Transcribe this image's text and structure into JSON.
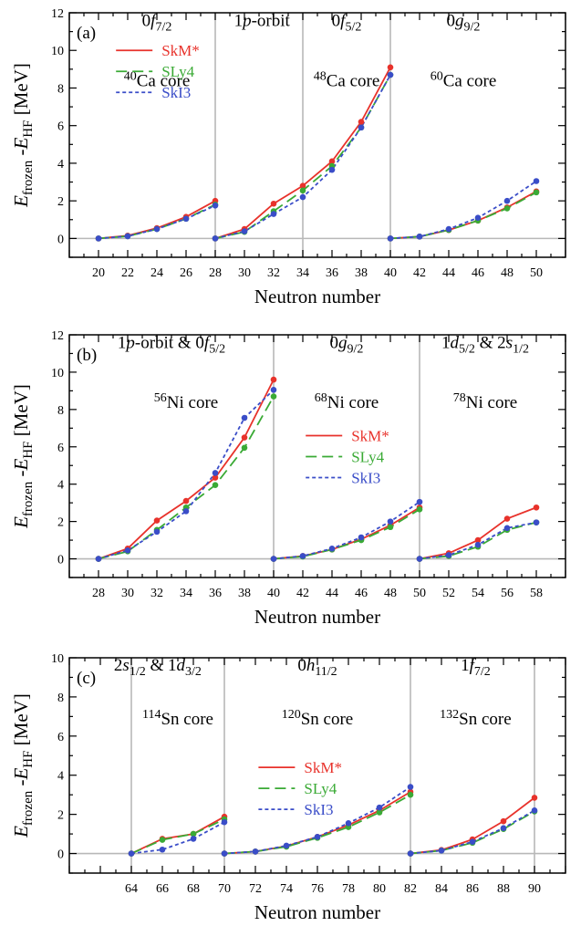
{
  "chart_data": [
    {
      "type": "line",
      "panel_label": "(a)",
      "xlabel": "Neutron number",
      "ylabel": "E_frozen - E_HF [MeV]",
      "xlim": [
        18,
        52
      ],
      "ylim": [
        -1,
        12
      ],
      "xticks": [
        20,
        22,
        24,
        26,
        28,
        30,
        32,
        34,
        36,
        38,
        40,
        42,
        44,
        46,
        48,
        50
      ],
      "yticks": [
        0,
        2,
        4,
        6,
        8,
        10,
        12
      ],
      "vlines": [
        28,
        34,
        40
      ],
      "legend": {
        "x": 21.2,
        "y": 10.0
      },
      "annotations": [
        {
          "x": 24,
          "y": 11.3,
          "parts": [
            {
              "t": "0"
            },
            {
              "t": "f",
              "i": true
            },
            {
              "t": "7/2",
              "sub": true
            }
          ]
        },
        {
          "x": 31.2,
          "y": 11.3,
          "parts": [
            {
              "t": "1"
            },
            {
              "t": "p",
              "i": true
            },
            {
              "t": "-orbit"
            }
          ]
        },
        {
          "x": 37,
          "y": 11.3,
          "parts": [
            {
              "t": "0"
            },
            {
              "t": "f",
              "i": true
            },
            {
              "t": "5/2",
              "sub": true
            }
          ]
        },
        {
          "x": 45,
          "y": 11.3,
          "parts": [
            {
              "t": "0"
            },
            {
              "t": "g",
              "i": true
            },
            {
              "t": "9/2",
              "sub": true
            }
          ]
        },
        {
          "x": 24,
          "y": 8.1,
          "parts": [
            {
              "t": "40",
              "sup": true
            },
            {
              "t": "Ca core"
            }
          ]
        },
        {
          "x": 37,
          "y": 8.1,
          "parts": [
            {
              "t": "48",
              "sup": true
            },
            {
              "t": "Ca core"
            }
          ]
        },
        {
          "x": 45,
          "y": 8.1,
          "parts": [
            {
              "t": "60",
              "sup": true
            },
            {
              "t": "Ca core"
            }
          ]
        }
      ],
      "series": [
        {
          "name": "SkM*",
          "color": "#e8322b",
          "dash": "none",
          "segments": [
            {
              "x": [
                20,
                22,
                24,
                26,
                28
              ],
              "y": [
                0,
                0.15,
                0.55,
                1.15,
                2.0
              ]
            },
            {
              "x": [
                28,
                30,
                32,
                34,
                36,
                38,
                40
              ],
              "y": [
                0,
                0.5,
                1.85,
                2.8,
                4.1,
                6.2,
                9.1
              ]
            },
            {
              "x": [
                40,
                42,
                44,
                46,
                48,
                50
              ],
              "y": [
                0,
                0.1,
                0.45,
                0.95,
                1.65,
                2.5
              ]
            }
          ]
        },
        {
          "name": "SLy4",
          "color": "#3aaa35",
          "dash": "12,6",
          "segments": [
            {
              "x": [
                20,
                22,
                24,
                26,
                28
              ],
              "y": [
                0,
                0.12,
                0.5,
                1.05,
                1.8
              ]
            },
            {
              "x": [
                28,
                30,
                32,
                34,
                36,
                38,
                40
              ],
              "y": [
                0,
                0.35,
                1.45,
                2.55,
                3.85,
                5.9,
                8.7
              ]
            },
            {
              "x": [
                40,
                42,
                44,
                46,
                48,
                50
              ],
              "y": [
                0,
                0.1,
                0.45,
                0.95,
                1.6,
                2.45
              ]
            }
          ]
        },
        {
          "name": "SkI3",
          "color": "#3a4dc8",
          "dash": "4,3",
          "segments": [
            {
              "x": [
                20,
                22,
                24,
                26,
                28
              ],
              "y": [
                0,
                0.12,
                0.5,
                1.05,
                1.75
              ]
            },
            {
              "x": [
                28,
                30,
                32,
                34,
                36,
                38,
                40
              ],
              "y": [
                0,
                0.38,
                1.3,
                2.2,
                3.65,
                5.9,
                8.7
              ]
            },
            {
              "x": [
                40,
                42,
                44,
                46,
                48,
                50
              ],
              "y": [
                0,
                0.1,
                0.5,
                1.1,
                2.0,
                3.05
              ]
            }
          ]
        }
      ]
    },
    {
      "type": "line",
      "panel_label": "(b)",
      "xlabel": "Neutron number",
      "ylabel": "E_frozen - E_HF [MeV]",
      "xlim": [
        26,
        60
      ],
      "ylim": [
        -1,
        12
      ],
      "xticks": [
        28,
        30,
        32,
        34,
        36,
        38,
        40,
        42,
        44,
        46,
        48,
        50,
        52,
        54,
        56,
        58
      ],
      "yticks": [
        0,
        2,
        4,
        6,
        8,
        10,
        12
      ],
      "vlines": [
        40,
        50
      ],
      "legend": {
        "x": 42.2,
        "y": 6.6
      },
      "annotations": [
        {
          "x": 33,
          "y": 11.3,
          "parts": [
            {
              "t": "1"
            },
            {
              "t": "p",
              "i": true
            },
            {
              "t": "-orbit & 0"
            },
            {
              "t": "f",
              "i": true
            },
            {
              "t": "5/2",
              "sub": true
            }
          ]
        },
        {
          "x": 45,
          "y": 11.3,
          "parts": [
            {
              "t": "0"
            },
            {
              "t": "g",
              "i": true
            },
            {
              "t": "9/2",
              "sub": true
            }
          ]
        },
        {
          "x": 54.5,
          "y": 11.3,
          "parts": [
            {
              "t": "1"
            },
            {
              "t": "d",
              "i": true
            },
            {
              "t": "5/2",
              "sub": true
            },
            {
              "t": " & 2"
            },
            {
              "t": "s",
              "i": true
            },
            {
              "t": "1/2",
              "sub": true
            }
          ]
        },
        {
          "x": 34,
          "y": 8.1,
          "parts": [
            {
              "t": "56",
              "sup": true
            },
            {
              "t": "Ni core"
            }
          ]
        },
        {
          "x": 45,
          "y": 8.1,
          "parts": [
            {
              "t": "68",
              "sup": true
            },
            {
              "t": "Ni core"
            }
          ]
        },
        {
          "x": 54.5,
          "y": 8.1,
          "parts": [
            {
              "t": "78",
              "sup": true
            },
            {
              "t": "Ni core"
            }
          ]
        }
      ],
      "series": [
        {
          "name": "SkM*",
          "color": "#e8322b",
          "dash": "none",
          "segments": [
            {
              "x": [
                28,
                30,
                32,
                34,
                36,
                38,
                40
              ],
              "y": [
                0,
                0.55,
                2.05,
                3.1,
                4.35,
                6.5,
                9.6
              ]
            },
            {
              "x": [
                40,
                42,
                44,
                46,
                48,
                50
              ],
              "y": [
                0,
                0.15,
                0.5,
                1.05,
                1.8,
                2.75
              ]
            },
            {
              "x": [
                50,
                52,
                54,
                56,
                58
              ],
              "y": [
                0,
                0.3,
                1.0,
                2.15,
                2.75
              ]
            }
          ]
        },
        {
          "name": "SLy4",
          "color": "#3aaa35",
          "dash": "12,6",
          "segments": [
            {
              "x": [
                28,
                30,
                32,
                34,
                36,
                38,
                40
              ],
              "y": [
                0,
                0.4,
                1.55,
                2.75,
                3.95,
                5.95,
                8.7
              ]
            },
            {
              "x": [
                40,
                42,
                44,
                46,
                48,
                50
              ],
              "y": [
                0,
                0.12,
                0.5,
                1.0,
                1.7,
                2.65
              ]
            },
            {
              "x": [
                50,
                52,
                54,
                56,
                58
              ],
              "y": [
                0,
                0.15,
                0.65,
                1.55,
                1.95
              ]
            }
          ]
        },
        {
          "name": "SkI3",
          "color": "#3a4dc8",
          "dash": "4,3",
          "segments": [
            {
              "x": [
                28,
                30,
                32,
                34,
                36,
                38,
                40
              ],
              "y": [
                0,
                0.45,
                1.45,
                2.55,
                4.6,
                7.55,
                9.05
              ]
            },
            {
              "x": [
                40,
                42,
                44,
                46,
                48,
                50
              ],
              "y": [
                0,
                0.15,
                0.55,
                1.15,
                2.0,
                3.05
              ]
            },
            {
              "x": [
                50,
                52,
                54,
                56,
                58
              ],
              "y": [
                0,
                0.2,
                0.75,
                1.65,
                1.95
              ]
            }
          ]
        }
      ]
    },
    {
      "type": "line",
      "panel_label": "(c)",
      "xlabel": "Neutron number",
      "ylabel": "E_frozen - E_HF [MeV]",
      "xlim": [
        60,
        92
      ],
      "ylim": [
        -1,
        10
      ],
      "xticks": [
        64,
        66,
        68,
        70,
        72,
        74,
        76,
        78,
        80,
        82,
        84,
        86,
        88,
        90
      ],
      "yticks": [
        0,
        2,
        4,
        6,
        8,
        10
      ],
      "vlines": [
        64,
        70,
        82,
        90
      ],
      "legend": {
        "x": 72.2,
        "y": 4.4
      },
      "annotations": [
        {
          "x": 65.7,
          "y": 9.35,
          "parts": [
            {
              "t": "2"
            },
            {
              "t": "s",
              "i": true
            },
            {
              "t": "1/2",
              "sub": true
            },
            {
              "t": " & 1"
            },
            {
              "t": "d",
              "i": true
            },
            {
              "t": "3/2",
              "sub": true
            }
          ]
        },
        {
          "x": 76,
          "y": 9.35,
          "parts": [
            {
              "t": "0"
            },
            {
              "t": "h",
              "i": true
            },
            {
              "t": "11/2",
              "sub": true
            }
          ]
        },
        {
          "x": 86.2,
          "y": 9.35,
          "parts": [
            {
              "t": "1"
            },
            {
              "t": "f",
              "i": true
            },
            {
              "t": "7/2",
              "sub": true
            }
          ]
        },
        {
          "x": 67,
          "y": 6.6,
          "parts": [
            {
              "t": "114",
              "sup": true
            },
            {
              "t": "Sn core"
            }
          ]
        },
        {
          "x": 76,
          "y": 6.6,
          "parts": [
            {
              "t": "120",
              "sup": true
            },
            {
              "t": "Sn core"
            }
          ]
        },
        {
          "x": 86.2,
          "y": 6.6,
          "parts": [
            {
              "t": "132",
              "sup": true
            },
            {
              "t": "Sn core"
            }
          ]
        }
      ],
      "series": [
        {
          "name": "SkM*",
          "color": "#e8322b",
          "dash": "none",
          "segments": [
            {
              "x": [
                64,
                66,
                68,
                70
              ],
              "y": [
                0,
                0.75,
                1.0,
                1.88
              ]
            },
            {
              "x": [
                70,
                72,
                74,
                76,
                78,
                80,
                82
              ],
              "y": [
                0,
                0.1,
                0.38,
                0.85,
                1.45,
                2.2,
                3.15
              ]
            },
            {
              "x": [
                82,
                84,
                86,
                88,
                90
              ],
              "y": [
                0,
                0.18,
                0.72,
                1.65,
                2.85
              ]
            }
          ]
        },
        {
          "name": "SLy4",
          "color": "#3aaa35",
          "dash": "12,6",
          "segments": [
            {
              "x": [
                64,
                66,
                68,
                70
              ],
              "y": [
                0,
                0.7,
                1.0,
                1.75
              ]
            },
            {
              "x": [
                70,
                72,
                74,
                76,
                78,
                80,
                82
              ],
              "y": [
                0,
                0.1,
                0.35,
                0.8,
                1.35,
                2.1,
                3.0
              ]
            },
            {
              "x": [
                82,
                84,
                86,
                88,
                90
              ],
              "y": [
                0,
                0.15,
                0.55,
                1.25,
                2.15
              ]
            }
          ]
        },
        {
          "name": "SkI3",
          "color": "#3a4dc8",
          "dash": "4,3",
          "segments": [
            {
              "x": [
                64,
                66,
                68,
                70
              ],
              "y": [
                0,
                0.2,
                0.75,
                1.6
              ]
            },
            {
              "x": [
                70,
                72,
                74,
                76,
                78,
                80,
                82
              ],
              "y": [
                0,
                0.1,
                0.4,
                0.85,
                1.55,
                2.35,
                3.4
              ]
            },
            {
              "x": [
                82,
                84,
                86,
                88,
                90
              ],
              "y": [
                0,
                0.15,
                0.6,
                1.3,
                2.2
              ]
            }
          ]
        }
      ]
    }
  ]
}
